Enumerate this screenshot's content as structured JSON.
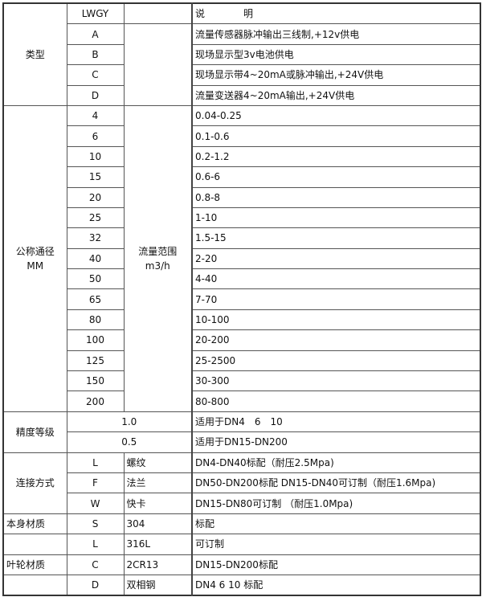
{
  "header": {
    "code": "LWGY",
    "desc": "说　　　　明"
  },
  "type": {
    "label": "类型",
    "rows": [
      {
        "code": "A",
        "desc": "流量传感器脉冲输出三线制,+12v供电"
      },
      {
        "code": "B",
        "desc": "现场显示型3v电池供电"
      },
      {
        "code": "C",
        "desc": "现场显示带4~20mA或脉冲输出,+24V供电"
      },
      {
        "code": "D",
        "desc": "流量变送器4~20mA输出,+24V供电"
      }
    ]
  },
  "diameter": {
    "label_line1": "公称通径",
    "label_line2": "MM",
    "range_label_line1": "流量范围",
    "range_label_line2": "m3/h",
    "rows": [
      {
        "dn": "4",
        "range": "0.04-0.25"
      },
      {
        "dn": "6",
        "range": "0.1-0.6"
      },
      {
        "dn": "10",
        "range": "0.2-1.2"
      },
      {
        "dn": "15",
        "range": "0.6-6"
      },
      {
        "dn": "20",
        "range": "0.8-8"
      },
      {
        "dn": "25",
        "range": "1-10"
      },
      {
        "dn": "32",
        "range": "1.5-15"
      },
      {
        "dn": "40",
        "range": "2-20"
      },
      {
        "dn": "50",
        "range": "4-40"
      },
      {
        "dn": "65",
        "range": "7-70"
      },
      {
        "dn": "80",
        "range": "10-100"
      },
      {
        "dn": "100",
        "range": "20-200"
      },
      {
        "dn": "125",
        "range": "25-2500"
      },
      {
        "dn": "150",
        "range": "30-300"
      },
      {
        "dn": "200",
        "range": "80-800"
      }
    ]
  },
  "accuracy": {
    "label": "精度等级",
    "rows": [
      {
        "grade": "1.0",
        "desc": "适用于DN4　6　10"
      },
      {
        "grade": "0.5",
        "desc": "适用于DN15-DN200"
      }
    ]
  },
  "connection": {
    "label": "连接方式",
    "rows": [
      {
        "code": "L",
        "name": "螺纹",
        "desc": "DN4-DN40标配（耐压2.5Mpa)"
      },
      {
        "code": "F",
        "name": "法兰",
        "desc": "DN50-DN200标配 DN15-DN40可订制（耐压1.6Mpa)"
      },
      {
        "code": "W",
        "name": "快卡",
        "desc": "DN15-DN80可订制 （耐压1.0Mpa)"
      }
    ]
  },
  "body_material": {
    "label": "本身材质",
    "rows": [
      {
        "code": "S",
        "name": "304",
        "desc": "标配"
      },
      {
        "code": "L",
        "name": "316L",
        "desc": "可订制"
      }
    ]
  },
  "impeller_material": {
    "label": "叶轮材质",
    "rows": [
      {
        "code": "C",
        "name": "2CR13",
        "desc": "DN15-DN200标配"
      },
      {
        "code": "D",
        "name": "双相钢",
        "desc": "DN4 6 10 标配"
      }
    ]
  }
}
